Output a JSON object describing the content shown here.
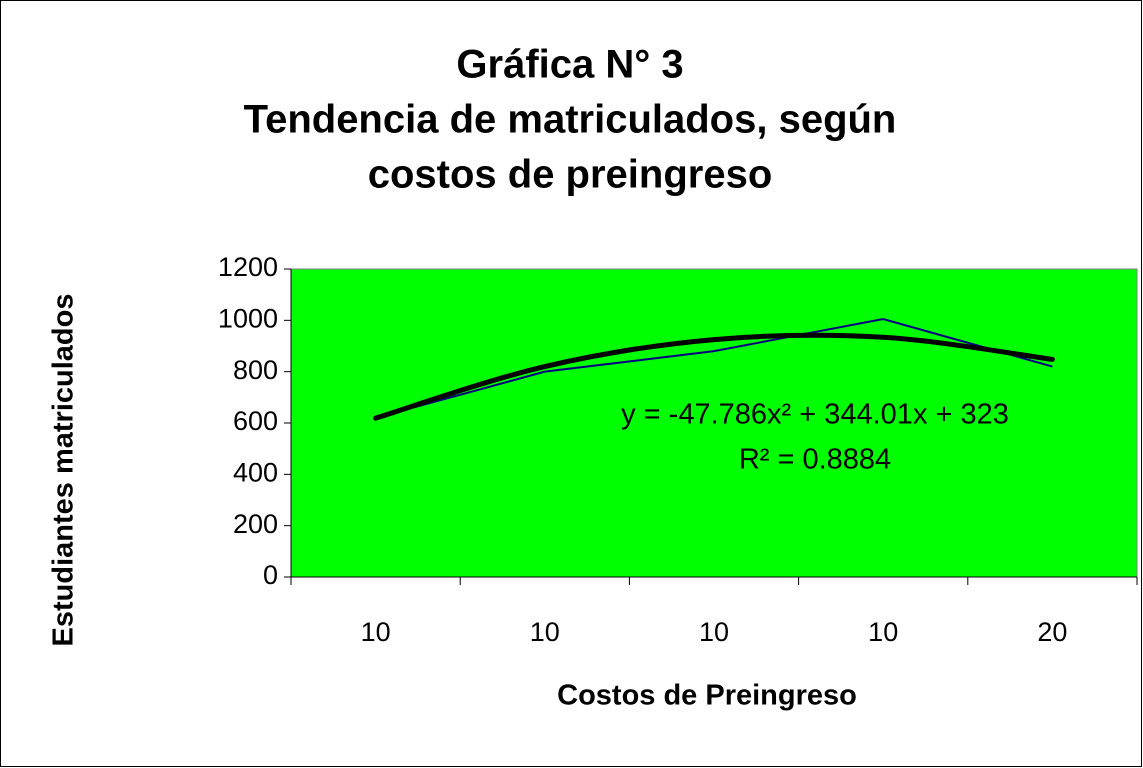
{
  "chart_data": {
    "type": "line",
    "title": [
      "Gráfica N° 3",
      "Tendencia de matriculados, según",
      "costos de preingreso"
    ],
    "x_label": "Costos de Preingreso",
    "y_label": "Estudiantes matriculados",
    "categories": [
      "10",
      "10",
      "10",
      "10",
      "20"
    ],
    "series": [
      {
        "color": "#000080",
        "values": [
          620,
          800,
          880,
          1005,
          820
        ]
      }
    ],
    "trendline": {
      "color": "#000000",
      "values": [
        619,
        820,
        925,
        934,
        848
      ],
      "equation": "y = -47.786x² + 344.01x + 323",
      "r_squared": "R² = 0.8884"
    },
    "ylim": [
      0,
      1200
    ],
    "yticks": [
      0,
      200,
      400,
      600,
      800,
      1000,
      1200
    ],
    "plot_background": "#00ff00"
  }
}
